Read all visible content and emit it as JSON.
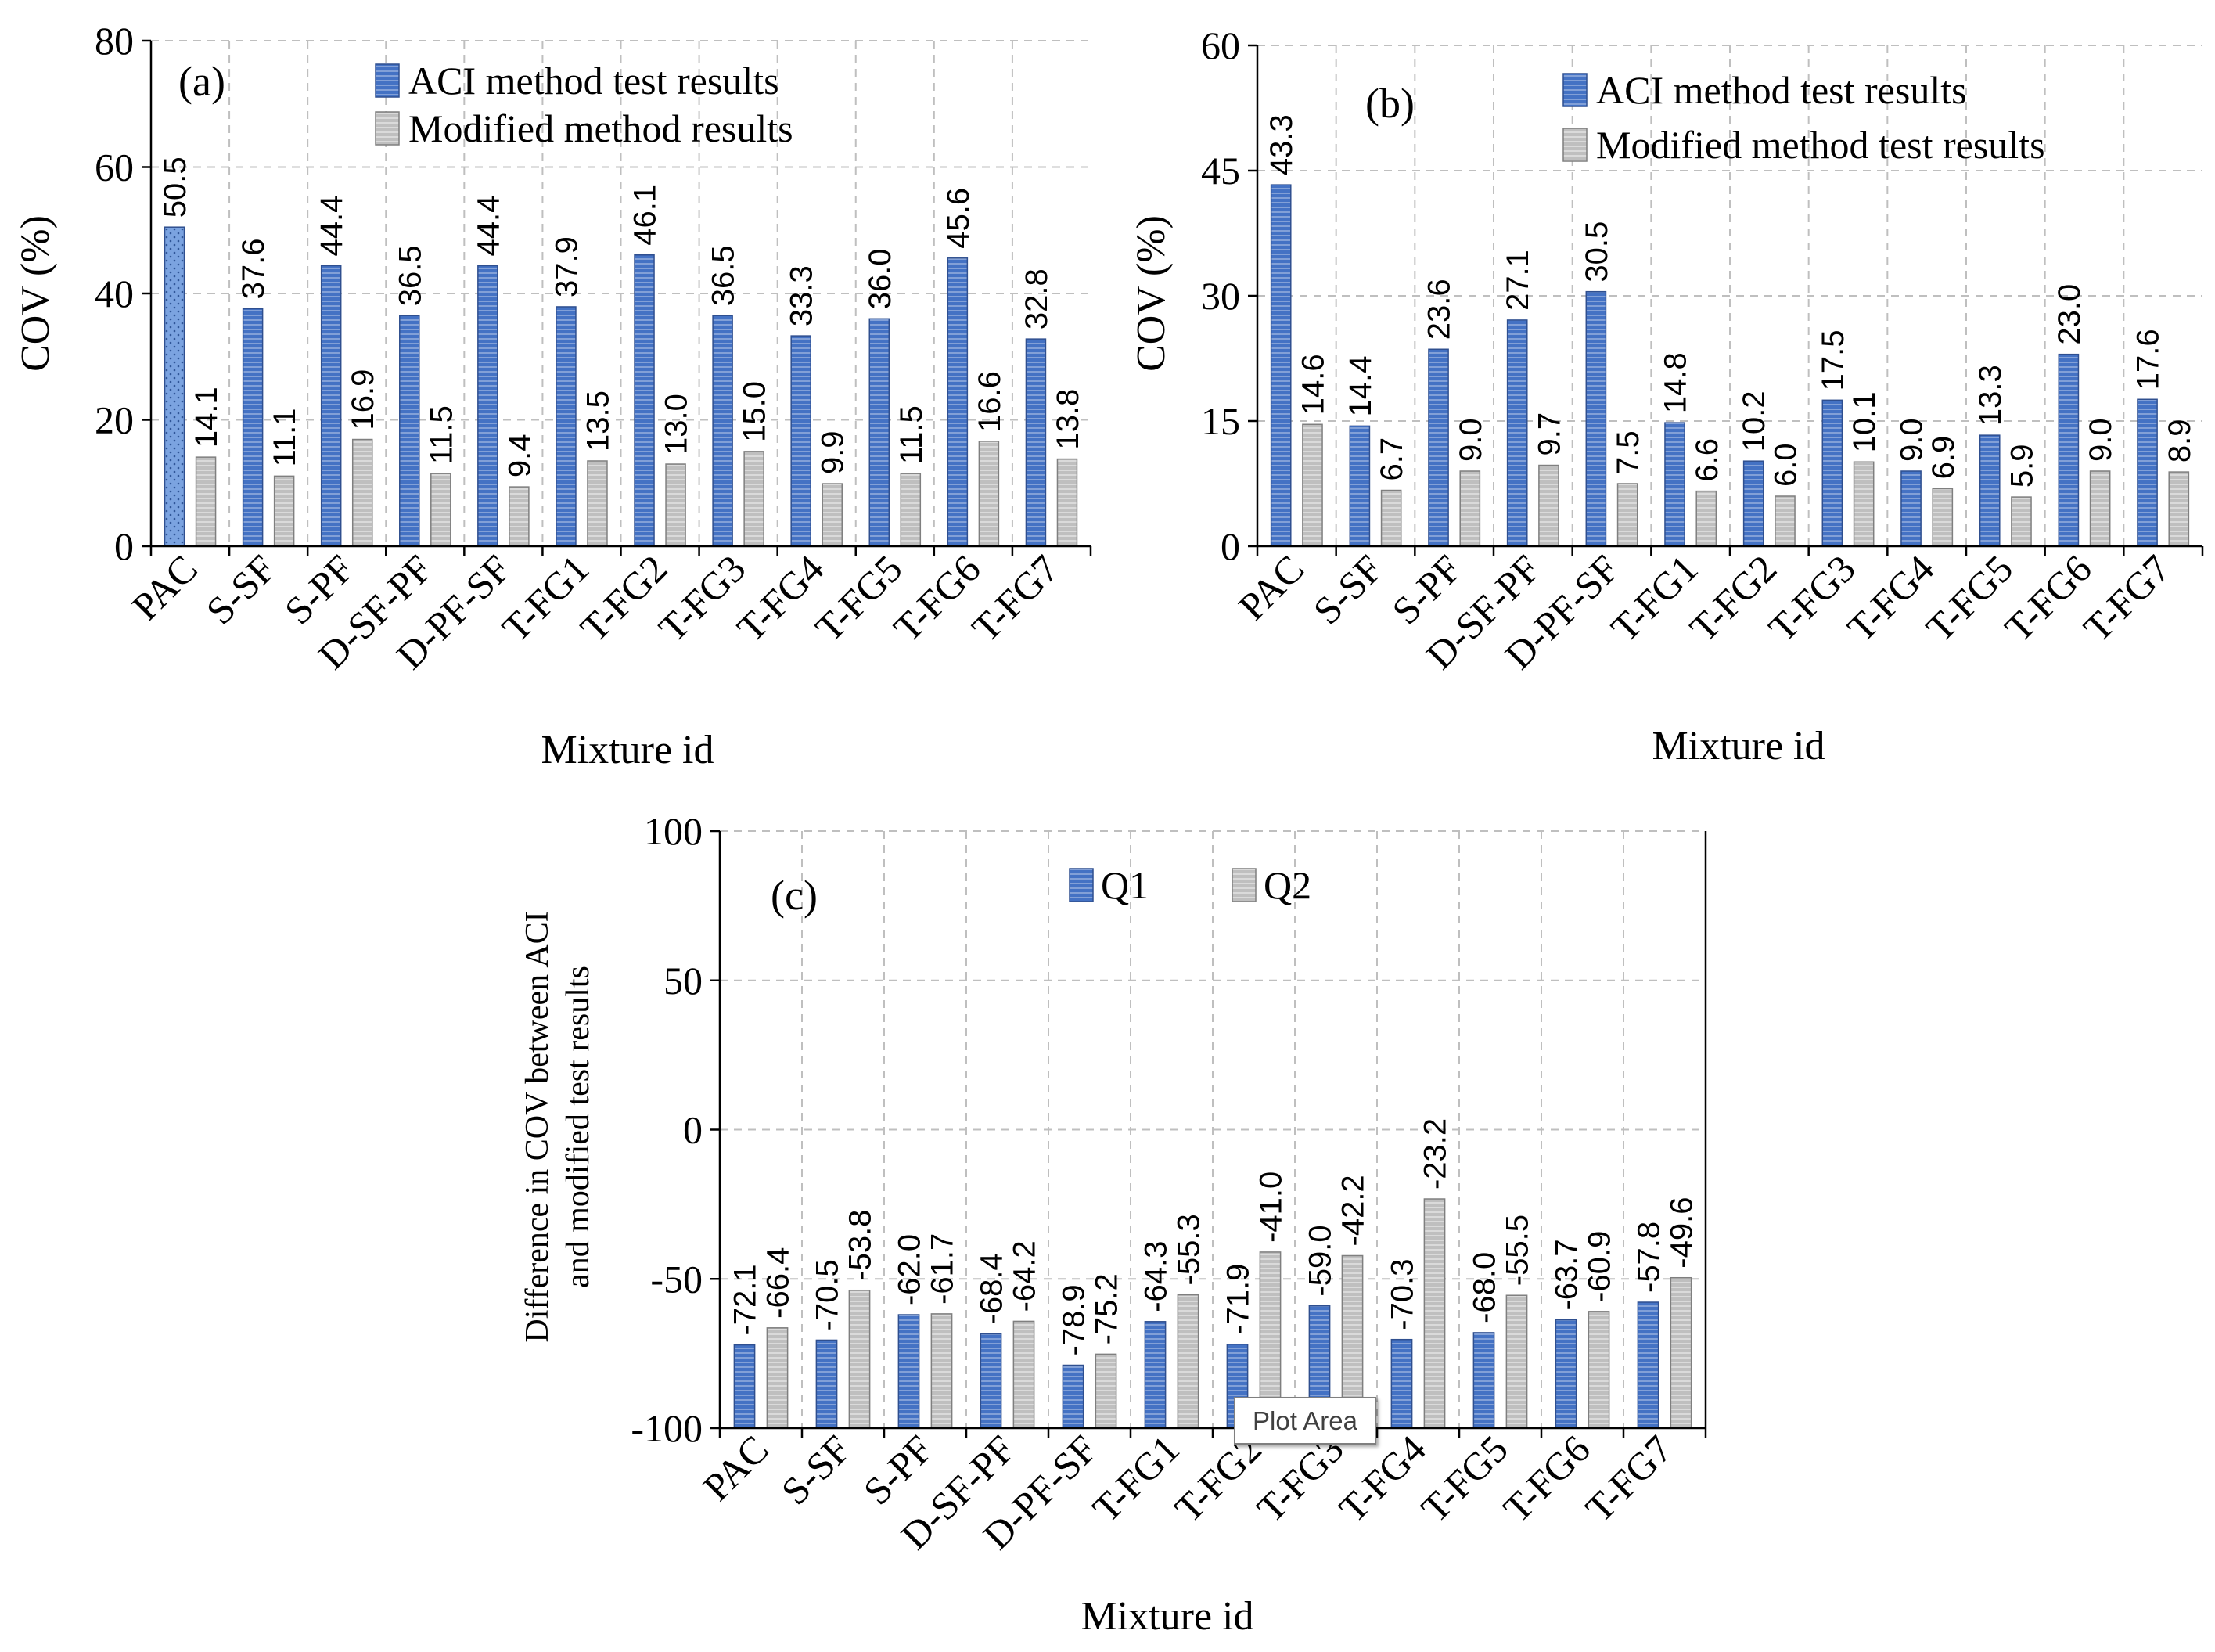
{
  "colors": {
    "aci": "#4472C4",
    "aci_highlight": "#7BA3E0",
    "modified": "#BFBFBF",
    "axis": "#000000",
    "grid": "#BFBFBF"
  },
  "chart_data": [
    {
      "type": "bar",
      "panel": "(a)",
      "ylabel": "COV (%)",
      "xlabel": "Mixture id",
      "ylim": [
        0,
        80
      ],
      "yticks": [
        0,
        20,
        40,
        60,
        80
      ],
      "grid": true,
      "legend_position": "top-right",
      "categories": [
        "PAC",
        "S-SF",
        "S-PF",
        "D-SF-PF",
        "D-PF-SF",
        "T-FG1",
        "T-FG2",
        "T-FG3",
        "T-FG4",
        "T-FG5",
        "T-FG6",
        "T-FG7"
      ],
      "series": [
        {
          "name": "ACI method test results",
          "values": [
            50.5,
            37.6,
            44.4,
            36.5,
            44.4,
            37.9,
            46.1,
            36.5,
            33.3,
            36.0,
            45.6,
            32.8
          ],
          "labels": [
            "50.5",
            "37.6",
            "44.4",
            "36.5",
            "44.4",
            "37.9",
            "46.1",
            "36.5",
            "33.3",
            "36.0",
            "45.6",
            "32.8"
          ]
        },
        {
          "name": "Modified method results",
          "values": [
            14.1,
            11.1,
            16.9,
            11.5,
            9.4,
            13.5,
            13.0,
            15.0,
            9.9,
            11.5,
            16.6,
            13.8
          ],
          "labels": [
            "14.1",
            "11.1",
            "16.9",
            "11.5",
            "9.4",
            "13.5",
            "13.0",
            "15.0",
            "9.9",
            "11.5",
            "16.6",
            "13.8"
          ]
        }
      ]
    },
    {
      "type": "bar",
      "panel": "(b)",
      "ylabel": "COV (%)",
      "xlabel": "Mixture id",
      "ylim": [
        0,
        60
      ],
      "yticks": [
        0,
        15,
        30,
        45,
        60
      ],
      "grid": true,
      "legend_position": "top-right",
      "categories": [
        "PAC",
        "S-SF",
        "S-PF",
        "D-SF-PF",
        "D-PF-SF",
        "T-FG1",
        "T-FG2",
        "T-FG3",
        "T-FG4",
        "T-FG5",
        "T-FG6",
        "T-FG7"
      ],
      "series": [
        {
          "name": "ACI method test results",
          "values": [
            43.3,
            14.4,
            23.6,
            27.1,
            30.5,
            14.8,
            10.2,
            17.5,
            9.0,
            13.3,
            23.0,
            17.6
          ],
          "labels": [
            "43.3",
            "14.4",
            "23.6",
            "27.1",
            "30.5",
            "14.8",
            "10.2",
            "17.5",
            "9.0",
            "13.3",
            "23.0",
            "17.6"
          ]
        },
        {
          "name": "Modified method test results",
          "values": [
            14.6,
            6.7,
            9.0,
            9.7,
            7.5,
            6.6,
            6.0,
            10.1,
            6.9,
            5.9,
            9.0,
            8.9
          ],
          "labels": [
            "14.6",
            "6.7",
            "9.0",
            "9.7",
            "7.5",
            "6.6",
            "6.0",
            "10.1",
            "6.9",
            "5.9",
            "9.0",
            "8.9"
          ]
        }
      ]
    },
    {
      "type": "bar",
      "panel": "(c)",
      "ylabel": "Difference in COV between ACI and modified test results",
      "xlabel": "Mixture id",
      "ylim": [
        -100,
        100
      ],
      "yticks": [
        -100,
        -50,
        0,
        50,
        100
      ],
      "grid": true,
      "legend_position": "top",
      "categories": [
        "PAC",
        "S-SF",
        "S-PF",
        "D-SF-PF",
        "D-PF-SF",
        "T-FG1",
        "T-FG2",
        "T-FG3",
        "T-FG4",
        "T-FG5",
        "T-FG6",
        "T-FG7"
      ],
      "series": [
        {
          "name": "Q1",
          "values": [
            -72.1,
            -70.5,
            -62.0,
            -68.4,
            -78.9,
            -64.3,
            -71.9,
            -59.0,
            -70.3,
            -68.0,
            -63.7,
            -57.8
          ],
          "labels": [
            "-72.1",
            "-70.5",
            "-62.0",
            "-68.4",
            "-78.9",
            "-64.3",
            "-71.9",
            "-59.0",
            "-70.3",
            "-68.0",
            "-63.7",
            "-57.8"
          ]
        },
        {
          "name": "Q2",
          "values": [
            -66.4,
            -53.8,
            -61.7,
            -64.2,
            -75.2,
            -55.3,
            -41.0,
            -42.2,
            -23.2,
            -55.5,
            -60.9,
            -49.6
          ],
          "labels": [
            "-66.4",
            "-53.8",
            "-61.7",
            "-64.2",
            "-75.2",
            "-55.3",
            "-41.0",
            "-42.2",
            "-23.2",
            "-55.5",
            "-60.9",
            "-49.6"
          ]
        }
      ]
    }
  ],
  "tooltip": {
    "text": "Plot Area"
  }
}
